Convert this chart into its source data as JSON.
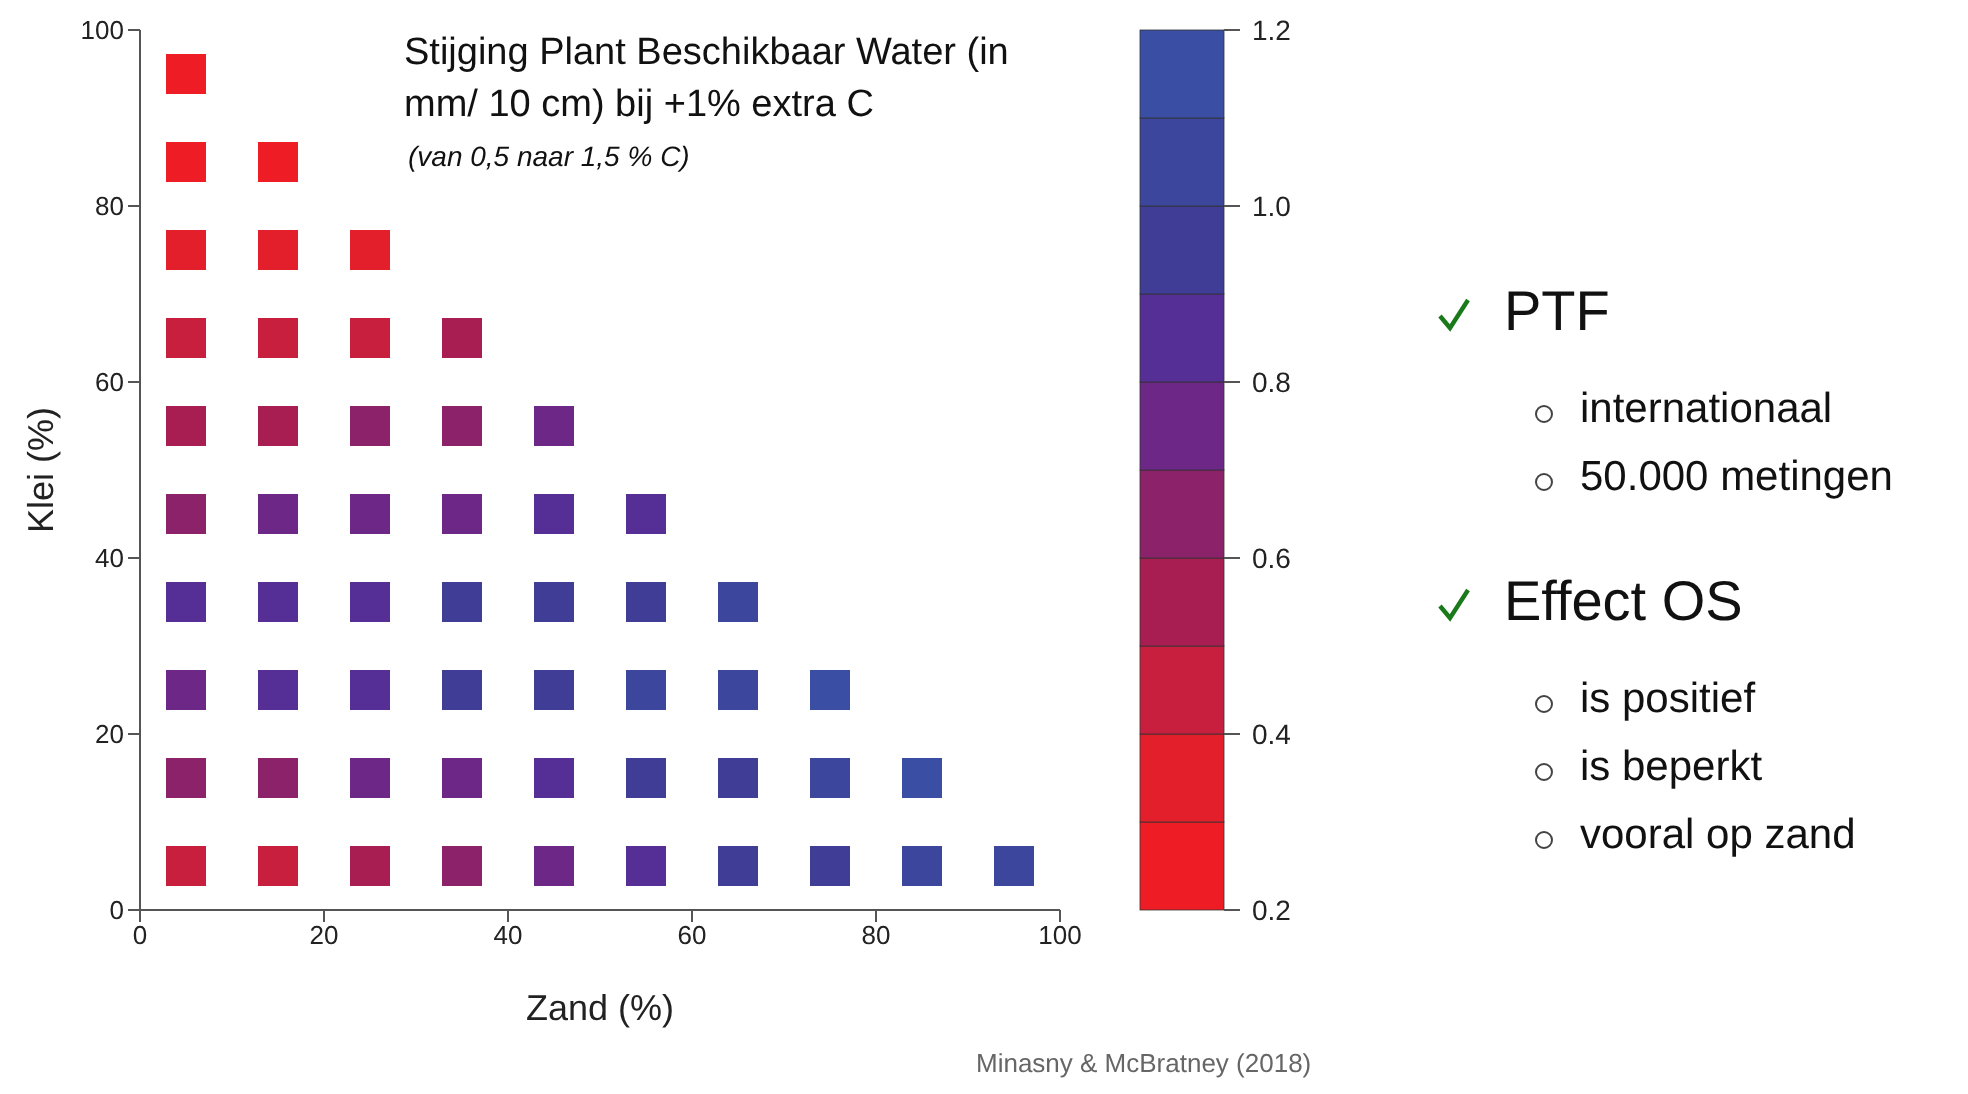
{
  "chart_data": {
    "type": "scatter",
    "title": "Stijging Plant Beschikbaar Water (in mm/ 10 cm) bij +1% extra C",
    "subtitle": "(van 0,5 naar 1,5 % C)",
    "xlabel": "Zand (%)",
    "ylabel": "Klei (%)",
    "x": [
      5,
      5,
      15,
      5,
      15,
      25,
      5,
      15,
      25,
      35,
      5,
      15,
      25,
      35,
      45,
      5,
      15,
      25,
      35,
      45,
      55,
      5,
      15,
      25,
      35,
      45,
      55,
      65,
      5,
      15,
      25,
      35,
      45,
      55,
      65,
      75,
      5,
      15,
      25,
      35,
      45,
      55,
      65,
      75,
      85,
      5,
      15,
      25,
      35,
      45,
      55,
      65,
      75,
      85,
      95
    ],
    "values": [
      95,
      85,
      85,
      75,
      75,
      75,
      65,
      65,
      65,
      65,
      55,
      55,
      55,
      55,
      55,
      45,
      45,
      45,
      45,
      45,
      45,
      35,
      35,
      35,
      35,
      35,
      35,
      35,
      25,
      25,
      25,
      25,
      25,
      25,
      25,
      25,
      15,
      15,
      15,
      15,
      15,
      15,
      15,
      15,
      15,
      5,
      5,
      5,
      5,
      5,
      5,
      5,
      5,
      5,
      5
    ],
    "cvalues": [
      0.25,
      0.25,
      0.25,
      0.35,
      0.35,
      0.35,
      0.45,
      0.45,
      0.45,
      0.55,
      0.55,
      0.55,
      0.65,
      0.65,
      0.75,
      0.65,
      0.75,
      0.75,
      0.75,
      0.85,
      0.85,
      0.85,
      0.85,
      0.85,
      0.95,
      0.95,
      0.95,
      1.05,
      0.75,
      0.85,
      0.85,
      0.95,
      0.95,
      1.05,
      1.05,
      1.15,
      0.65,
      0.65,
      0.75,
      0.75,
      0.85,
      0.95,
      0.95,
      1.05,
      1.15,
      0.45,
      0.45,
      0.55,
      0.65,
      0.75,
      0.85,
      0.95,
      0.95,
      1.05,
      1.05
    ],
    "marker": "square",
    "clim": [
      0.2,
      1.2
    ],
    "cticks": [
      0.2,
      0.4,
      0.6,
      0.8,
      {
        "value": 1,
        "label": "1.0"
      },
      1.2
    ],
    "xlim": [
      0,
      100
    ],
    "ylim": [
      0,
      100
    ],
    "xticks": [
      0,
      20,
      40,
      60,
      80,
      100
    ],
    "yticks": [
      0,
      20,
      40,
      60,
      80,
      100
    ],
    "annotations": [
      "PTF",
      "internationaal",
      "50.000 metingen",
      "Effect OS",
      "is positief",
      "is beperkt",
      "vooral op zand",
      "Minasny & McBratney (2018)"
    ]
  }
}
